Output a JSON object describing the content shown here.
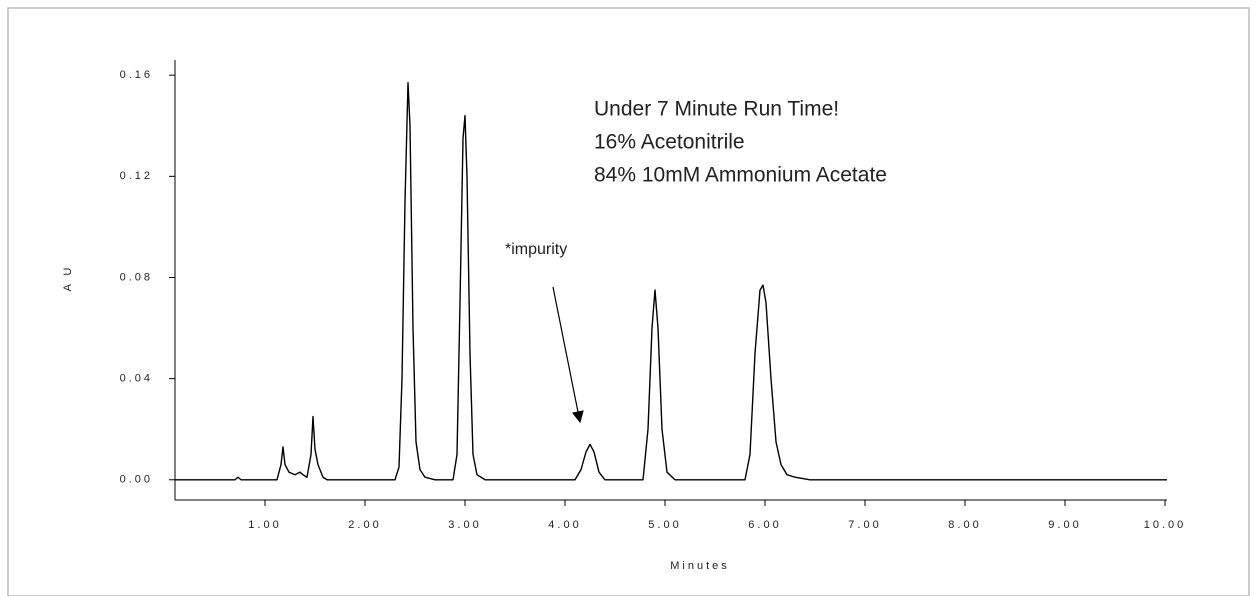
{
  "chart_data": {
    "type": "line",
    "ylabel": "A U",
    "xlabel": "Minutes",
    "annotations": [
      "Under 7 Minute Run Time!",
      "16% Acetonitrile",
      "84% 10mM Ammonium Acetate"
    ],
    "arrow_label": "*impurity",
    "color": "#000000",
    "x": [
      0.1,
      0.7,
      0.73,
      0.76,
      1.12,
      1.16,
      1.18,
      1.2,
      1.24,
      1.3,
      1.35,
      1.38,
      1.42,
      1.46,
      1.48,
      1.5,
      1.53,
      1.58,
      1.62,
      2.3,
      2.34,
      2.37,
      2.4,
      2.43,
      2.45,
      2.48,
      2.51,
      2.55,
      2.6,
      2.7,
      2.88,
      2.92,
      2.95,
      2.98,
      3.0,
      3.02,
      3.05,
      3.08,
      3.12,
      3.2,
      4.1,
      4.16,
      4.21,
      4.25,
      4.29,
      4.34,
      4.4,
      4.78,
      4.83,
      4.87,
      4.9,
      4.93,
      4.97,
      5.02,
      5.1,
      5.8,
      5.85,
      5.9,
      5.95,
      5.98,
      6.01,
      6.06,
      6.11,
      6.16,
      6.22,
      6.3,
      6.45,
      10.02
    ],
    "values": [
      0,
      0,
      0.001,
      0,
      0,
      0.006,
      0.013,
      0.006,
      0.003,
      0.002,
      0.003,
      0.002,
      0.001,
      0.01,
      0.025,
      0.012,
      0.006,
      0.001,
      0,
      0,
      0.005,
      0.04,
      0.11,
      0.157,
      0.14,
      0.06,
      0.015,
      0.004,
      0.001,
      0,
      0,
      0.01,
      0.07,
      0.135,
      0.144,
      0.12,
      0.05,
      0.01,
      0.002,
      0,
      0,
      0.004,
      0.011,
      0.014,
      0.011,
      0.003,
      0,
      0,
      0.02,
      0.06,
      0.075,
      0.06,
      0.02,
      0.003,
      0,
      0,
      0.01,
      0.05,
      0.075,
      0.077,
      0.07,
      0.04,
      0.015,
      0.006,
      0.002,
      0.001,
      0,
      0
    ],
    "xlim": [
      0.1,
      10.02
    ],
    "ylim": [
      -0.008,
      0.166
    ],
    "xticks": [
      {
        "value": 1,
        "label": "1.00"
      },
      {
        "value": 2,
        "label": "2.00"
      },
      {
        "value": 3,
        "label": "3.00"
      },
      {
        "value": 4,
        "label": "4.00"
      },
      {
        "value": 5,
        "label": "5.00"
      },
      {
        "value": 6,
        "label": "6.00"
      },
      {
        "value": 7,
        "label": "7.00"
      },
      {
        "value": 8,
        "label": "8.00"
      },
      {
        "value": 9,
        "label": "9.00"
      },
      {
        "value": 10,
        "label": "10.00"
      }
    ],
    "yticks": [
      {
        "value": 0,
        "label": "0.00"
      },
      0.04,
      0.08,
      0.12,
      0.16
    ],
    "grid": false
  }
}
